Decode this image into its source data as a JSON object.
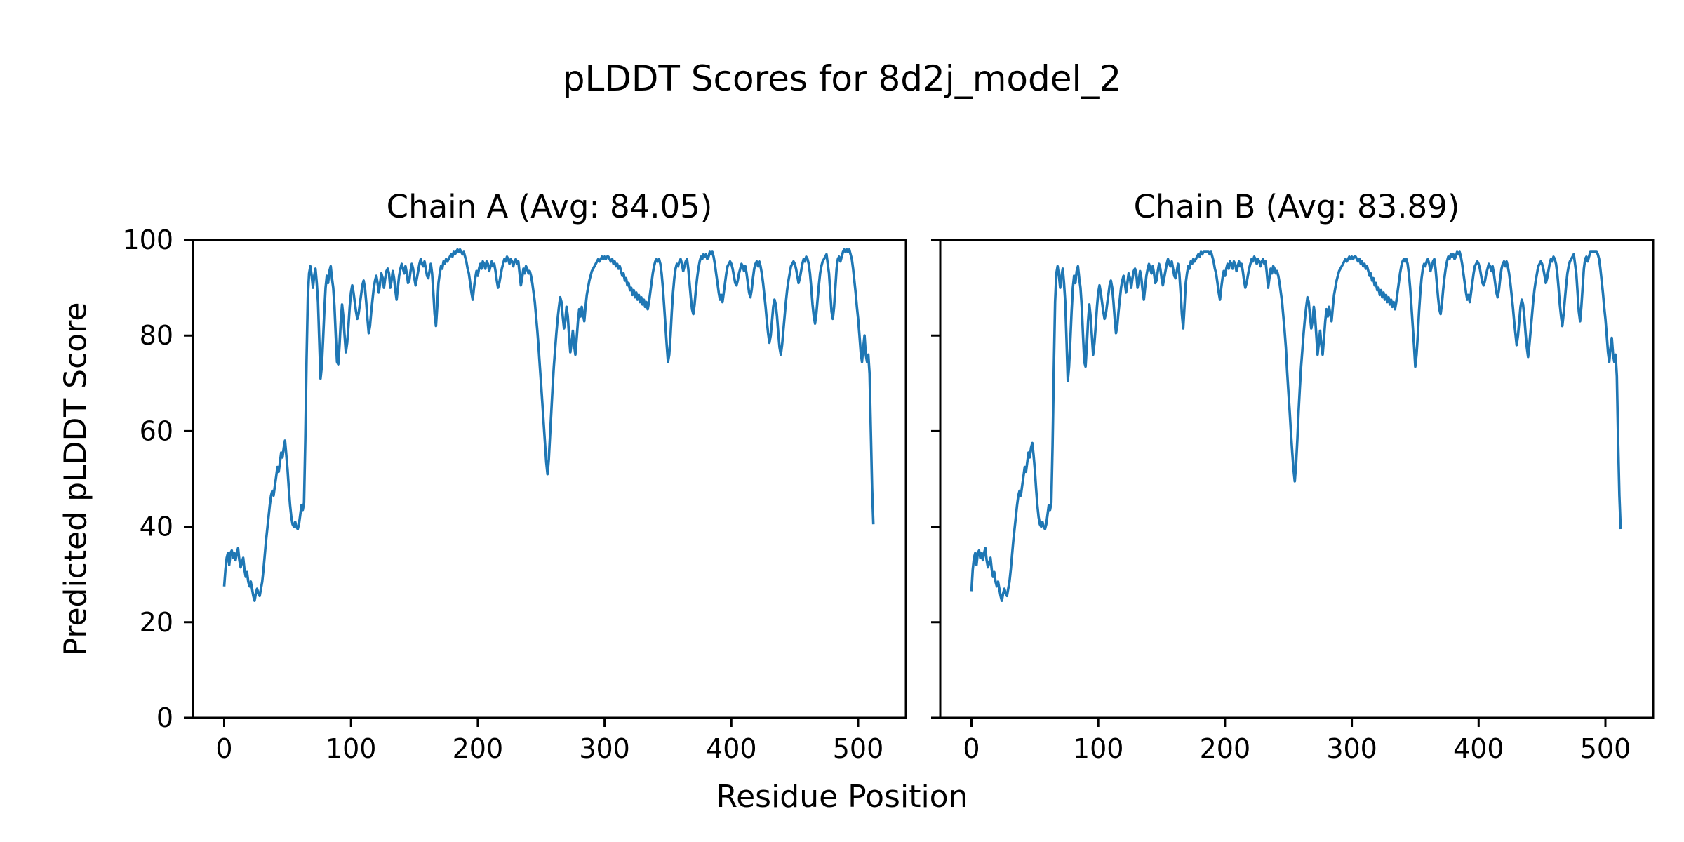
{
  "figure": {
    "suptitle": "pLDDT Scores for 8d2j_model_2",
    "background": "#ffffff",
    "text_color": "#000000",
    "spine_color": "#000000"
  },
  "chart_data": {
    "type": "line",
    "title": "pLDDT Scores for 8d2j_model_2",
    "xlabel": "Residue Position",
    "ylabel": "Predicted pLDDT Score",
    "line_color": "#1f77b4",
    "grid": false,
    "legend": "none",
    "xlim": [
      -24.6,
      537.6
    ],
    "ylim": [
      0,
      100
    ],
    "xticks": [
      0,
      100,
      200,
      300,
      400,
      500
    ],
    "yticks": [
      0,
      20,
      40,
      60,
      80,
      100
    ],
    "x_start": 0,
    "x_step": 1,
    "subplots": [
      {
        "id": "chain-a",
        "title": "Chain A (Avg: 84.05)",
        "avg": 84.05,
        "show_ytick_labels": true,
        "values": [
          27.5,
          31,
          33.5,
          34.5,
          32,
          34.5,
          35,
          33.5,
          34.5,
          33,
          34.5,
          35.5,
          33,
          31.5,
          32.5,
          33.5,
          31,
          29.5,
          30.5,
          28.5,
          27.5,
          28.5,
          27,
          25.5,
          24.5,
          26,
          27,
          26,
          25.5,
          27,
          28.5,
          31,
          34,
          37,
          39.5,
          42,
          44.5,
          46.5,
          47.5,
          46.5,
          48.5,
          50.5,
          52.5,
          51.5,
          53.5,
          55.5,
          54.5,
          56.5,
          58,
          55,
          52,
          48,
          44.5,
          42,
          40.5,
          40,
          41,
          40,
          39.5,
          40.5,
          42.5,
          44.5,
          43.5,
          45,
          58,
          75,
          88,
          93,
          94.5,
          92.5,
          90,
          92.5,
          94,
          91,
          87,
          79,
          71,
          73.5,
          79,
          85,
          90,
          92.5,
          91,
          93.5,
          94.5,
          92,
          90,
          86,
          80,
          74.5,
          74,
          78,
          83,
          86.5,
          84,
          80,
          76.5,
          78.5,
          82,
          86,
          89,
          90.5,
          89,
          87,
          85,
          83.5,
          84.5,
          86.5,
          88.5,
          90.5,
          91.5,
          90,
          87,
          83.5,
          80.5,
          82,
          85,
          87.5,
          90,
          91.5,
          92.5,
          91,
          89,
          91,
          93,
          92,
          90,
          92,
          93.5,
          94,
          93,
          90,
          91.5,
          93.5,
          92,
          89.5,
          87.5,
          90,
          92.5,
          94,
          95,
          94,
          93,
          94.5,
          93,
          91,
          91.5,
          93.5,
          95,
          94,
          92,
          90.5,
          92,
          93.5,
          95,
          96,
          95,
          94.5,
          95.5,
          94,
          92.5,
          92,
          93.5,
          95,
          93,
          89,
          84.5,
          82,
          86,
          91,
          93,
          94.5,
          94,
          95.5,
          95,
          96,
          95.5,
          96,
          96.5,
          97,
          96.5,
          97.5,
          97,
          97.5,
          98,
          97.5,
          98,
          97.5,
          97,
          97.5,
          96.5,
          95.5,
          94,
          93,
          91,
          89,
          87.5,
          90,
          92,
          93.5,
          92.5,
          94,
          95,
          94,
          95.5,
          95,
          94,
          95.5,
          95,
          93.5,
          94.5,
          95.5,
          94.5,
          95,
          93.5,
          91.5,
          90,
          91,
          92.5,
          94,
          95,
          96,
          95.5,
          96.5,
          96,
          95,
          96,
          95.5,
          94.5,
          95.5,
          96,
          95,
          95.5,
          93,
          90.5,
          92,
          94,
          93,
          94.5,
          94,
          93,
          93.5,
          92.5,
          91,
          89,
          87,
          84,
          81,
          77.5,
          73.5,
          69.5,
          65.5,
          61.5,
          57.5,
          53.5,
          51,
          54,
          59,
          64,
          69,
          73.5,
          77,
          80.5,
          83.5,
          86,
          88,
          87,
          84,
          81.5,
          83,
          86,
          84,
          80,
          76.5,
          78.5,
          81,
          78,
          76,
          79.5,
          83,
          85.5,
          84,
          86,
          84.5,
          83,
          86,
          88.5,
          90,
          91.5,
          92.5,
          93.5,
          94,
          94.5,
          95,
          95.5,
          96,
          95.5,
          96,
          96.5,
          96,
          96.5,
          96,
          96.5,
          96.5,
          96,
          95.5,
          96,
          95,
          95.5,
          94.5,
          95,
          94,
          94.5,
          93.5,
          92.5,
          93,
          91.5,
          92,
          90.5,
          91,
          89.5,
          90,
          88.5,
          89.5,
          88,
          89,
          87.5,
          88.5,
          87,
          88,
          86.5,
          87.5,
          86,
          87,
          85.5,
          87,
          89,
          91,
          93,
          94.5,
          95.5,
          96,
          95.5,
          96,
          95,
          93,
          90,
          86,
          82,
          78,
          74.5,
          76,
          80,
          85,
          89,
          92,
          94,
          95,
          94.5,
          95.5,
          96,
          95,
          93.5,
          94.5,
          95.5,
          96,
          94,
          91,
          88,
          85.5,
          84.5,
          86.5,
          89.5,
          92,
          94,
          95.5,
          96.5,
          96,
          97,
          96.5,
          97,
          96,
          96.5,
          97.5,
          97,
          97.5,
          96.5,
          95,
          93,
          91,
          89,
          87.5,
          88.5,
          87,
          89,
          91,
          93,
          94.5,
          95,
          95.5,
          95,
          94,
          92.5,
          91,
          90.5,
          91.5,
          93,
          94,
          95,
          94.5,
          93.5,
          94.5,
          93,
          91,
          89,
          88,
          89.5,
          92,
          94,
          95,
          95.5,
          94.5,
          95.5,
          94.5,
          93,
          91,
          88.5,
          86,
          83,
          80.5,
          78.5,
          80,
          83,
          86,
          87.5,
          86.5,
          84,
          80.5,
          77.5,
          76,
          78,
          81,
          84,
          87,
          89.5,
          91.5,
          93,
          94.5,
          95,
          95.5,
          95,
          94,
          92.5,
          91,
          92,
          93.5,
          95,
          96,
          95.5,
          96.5,
          96,
          95,
          93,
          90,
          86.5,
          84,
          82.5,
          84.5,
          87.5,
          90.5,
          93,
          94.5,
          95.5,
          96,
          96.5,
          97,
          95,
          93,
          89,
          85,
          83.5,
          86,
          90,
          94,
          96,
          96.5,
          95.5,
          96.5,
          97.5,
          98,
          97.5,
          98,
          97.5,
          98,
          97,
          96,
          94,
          91.5,
          89,
          86,
          83.5,
          80,
          76.5,
          74.5,
          77.5,
          80,
          76,
          74.5,
          76,
          72,
          60,
          48,
          40.5
        ]
      },
      {
        "id": "chain-b",
        "title": "Chain B (Avg: 83.89)",
        "avg": 83.89,
        "show_ytick_labels": false,
        "values": [
          26.5,
          31,
          33.5,
          34.5,
          32,
          34.5,
          35,
          33.5,
          34.5,
          33,
          34.5,
          35.5,
          33,
          31.5,
          32.5,
          33.5,
          31,
          29.5,
          30.5,
          28.5,
          27.5,
          28.5,
          27,
          25.5,
          24.5,
          26,
          27,
          26,
          25.5,
          27,
          28.5,
          31,
          34,
          37,
          39.5,
          42,
          44.5,
          46.5,
          47.5,
          46.5,
          48.5,
          50.5,
          52.5,
          51.5,
          53.5,
          55.5,
          54.5,
          56.5,
          57.5,
          55,
          52,
          48,
          44.5,
          42,
          40.5,
          40,
          41,
          40,
          39.5,
          40.5,
          42.5,
          44.5,
          43.5,
          45,
          57,
          73,
          87,
          93,
          94.5,
          92.5,
          90,
          92.5,
          94,
          91,
          87,
          79,
          70.5,
          73.5,
          79,
          85,
          90,
          92.5,
          91,
          93.5,
          94.5,
          92,
          90,
          86,
          80,
          74.5,
          73.5,
          78,
          83,
          86.5,
          84,
          80,
          76,
          78.5,
          82,
          86,
          89,
          90.5,
          89,
          87,
          85,
          83.5,
          84.5,
          86.5,
          88.5,
          90.5,
          91.5,
          90,
          87,
          83.5,
          80.5,
          82,
          85,
          87.5,
          90,
          91.5,
          92.5,
          91,
          89,
          91,
          93,
          92,
          90,
          92,
          93.5,
          94,
          93,
          90,
          91.5,
          93.5,
          92,
          89.5,
          87.5,
          90,
          92.5,
          94,
          95,
          94,
          93,
          94.5,
          93,
          91,
          91.5,
          93.5,
          95,
          94,
          92,
          90.5,
          92,
          93.5,
          95,
          96,
          95,
          94.5,
          95.5,
          94,
          92.5,
          92,
          93.5,
          95,
          93,
          89,
          84.5,
          81.5,
          86,
          91,
          93,
          94.5,
          94,
          95.5,
          95,
          96,
          95.5,
          96,
          96.5,
          97,
          96.5,
          97.5,
          97,
          97.5,
          97.5,
          97.5,
          97.5,
          97.5,
          97,
          97.5,
          96.5,
          95.5,
          94,
          93,
          91,
          89,
          87.5,
          90,
          92,
          93.5,
          92.5,
          94,
          95,
          94,
          95.5,
          95,
          94,
          95.5,
          95,
          93.5,
          94.5,
          95.5,
          94.5,
          95,
          93.5,
          91.5,
          90,
          91,
          92.5,
          94,
          95,
          96,
          95.5,
          96.5,
          96,
          95,
          96,
          95.5,
          94.5,
          95.5,
          96,
          95,
          95.5,
          93,
          90,
          92,
          94,
          93,
          94.5,
          94,
          93,
          93.5,
          92.5,
          91,
          89,
          87,
          84,
          81,
          77.5,
          72.5,
          68,
          64,
          59.5,
          55.5,
          52,
          49.5,
          53,
          58,
          64,
          69,
          73.5,
          77,
          80.5,
          83.5,
          86,
          88,
          87,
          84,
          81.5,
          83,
          86,
          84,
          80,
          76,
          78.5,
          81,
          78,
          76,
          79.5,
          83,
          85.5,
          84,
          86,
          84.5,
          83,
          86,
          88.5,
          90,
          91.5,
          92.5,
          93.5,
          94,
          94.5,
          95,
          95.5,
          96,
          95.5,
          96,
          96.5,
          96,
          96.5,
          96,
          96.5,
          96.5,
          96,
          95.5,
          96,
          95,
          95.5,
          94.5,
          95,
          94,
          94.5,
          93.5,
          92.5,
          93,
          91.5,
          92,
          90.5,
          91,
          89.5,
          90,
          88.5,
          89.5,
          88,
          89,
          87.5,
          88.5,
          87,
          88,
          86.5,
          87.5,
          86,
          87,
          85.5,
          87,
          89,
          91,
          93,
          94.5,
          95.5,
          96,
          95.5,
          96,
          95,
          93,
          90,
          86,
          82,
          78,
          73.5,
          76,
          80,
          85,
          89,
          92,
          94,
          95,
          94.5,
          95.5,
          96,
          95,
          93.5,
          94.5,
          95.5,
          96,
          94,
          91,
          88,
          85.5,
          84.5,
          86.5,
          89.5,
          92,
          94,
          95.5,
          96.5,
          96,
          97,
          96.5,
          97,
          96,
          96.5,
          97.5,
          97,
          97.5,
          96.5,
          95,
          93,
          91,
          89,
          87.5,
          88.5,
          87,
          89,
          91,
          93,
          94.5,
          95,
          95.5,
          95,
          94,
          92.5,
          91,
          90.5,
          91.5,
          93,
          94,
          95,
          94.5,
          93.5,
          94.5,
          93,
          91,
          89,
          88,
          89.5,
          92,
          94,
          95,
          95.5,
          94.5,
          95.5,
          94.5,
          93,
          91,
          88.5,
          86,
          83,
          80.5,
          78,
          80,
          83,
          86,
          87.5,
          86.5,
          84,
          80.5,
          77.5,
          75.5,
          78,
          81,
          84,
          87,
          89.5,
          91.5,
          93,
          94.5,
          95,
          95.5,
          95,
          94,
          92.5,
          91,
          92,
          93.5,
          95,
          96,
          95.5,
          96.5,
          96,
          95,
          93,
          90,
          86.5,
          84,
          82,
          84.5,
          87.5,
          90.5,
          93,
          94.5,
          95.5,
          96,
          96.5,
          97,
          95,
          93,
          89,
          85,
          83,
          86,
          90,
          94,
          96,
          96.5,
          95.5,
          96.5,
          97.5,
          97.5,
          97.5,
          97.5,
          97.5,
          97.5,
          97,
          96,
          94,
          91.5,
          89,
          86,
          83.5,
          80,
          76.5,
          74.5,
          77.5,
          79.5,
          76,
          74.5,
          76,
          71.5,
          58,
          46.5,
          39.5
        ]
      }
    ]
  }
}
